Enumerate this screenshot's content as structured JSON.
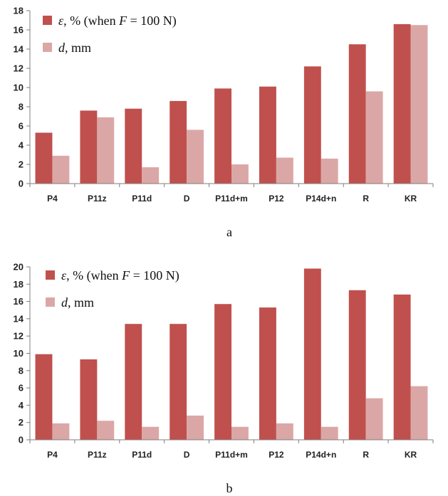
{
  "figure": {
    "panel_labels": [
      "a",
      "b"
    ]
  },
  "colors": {
    "epsilon": "#c0504d",
    "d": "#dba7a6",
    "axis": "#7f7f7f"
  },
  "chart_data": [
    {
      "type": "bar",
      "panel": "a",
      "categories": [
        "P4",
        "P11z",
        "P11d",
        "D",
        "P11d+m",
        "P12",
        "P14d+n",
        "R",
        "KR"
      ],
      "ylim": [
        0,
        18
      ],
      "yticks": [
        0,
        2,
        4,
        6,
        8,
        10,
        12,
        14,
        16,
        18
      ],
      "grid": false,
      "legend_position": "top-left",
      "series": [
        {
          "name": "ε, % (when F = 100 N)",
          "legend_parts": [
            {
              "text": "ε",
              "italic": true
            },
            {
              "text": ", % (when ",
              "italic": false
            },
            {
              "text": "F",
              "italic": true
            },
            {
              "text": " = 100 N)",
              "italic": false
            }
          ],
          "color": "#c0504d",
          "values": [
            5.3,
            7.6,
            7.8,
            8.6,
            9.9,
            10.1,
            12.2,
            14.5,
            16.6
          ]
        },
        {
          "name": "d, mm",
          "legend_parts": [
            {
              "text": "d",
              "italic": true
            },
            {
              "text": ", mm",
              "italic": false
            }
          ],
          "color": "#dba7a6",
          "values": [
            2.9,
            6.9,
            1.7,
            5.6,
            2.0,
            2.7,
            2.6,
            9.6,
            16.5
          ]
        }
      ]
    },
    {
      "type": "bar",
      "panel": "b",
      "categories": [
        "P4",
        "P11z",
        "P11d",
        "D",
        "P11d+m",
        "P12",
        "P14d+n",
        "R",
        "KR"
      ],
      "ylim": [
        0,
        20
      ],
      "yticks": [
        0,
        2,
        4,
        6,
        8,
        10,
        12,
        14,
        16,
        18,
        20
      ],
      "grid": false,
      "legend_position": "top-left",
      "series": [
        {
          "name": "ε, % (when F = 100 N)",
          "legend_parts": [
            {
              "text": "ε",
              "italic": true
            },
            {
              "text": ", % (when ",
              "italic": false
            },
            {
              "text": "F",
              "italic": true
            },
            {
              "text": " = 100 N)",
              "italic": false
            }
          ],
          "color": "#c0504d",
          "values": [
            9.9,
            9.3,
            13.4,
            13.4,
            15.7,
            15.3,
            19.8,
            17.3,
            16.8
          ]
        },
        {
          "name": "d, mm",
          "legend_parts": [
            {
              "text": "d",
              "italic": true
            },
            {
              "text": ", mm",
              "italic": false
            }
          ],
          "color": "#dba7a6",
          "values": [
            1.9,
            2.2,
            1.5,
            2.8,
            1.5,
            1.9,
            1.5,
            4.8,
            6.2
          ]
        }
      ]
    }
  ]
}
